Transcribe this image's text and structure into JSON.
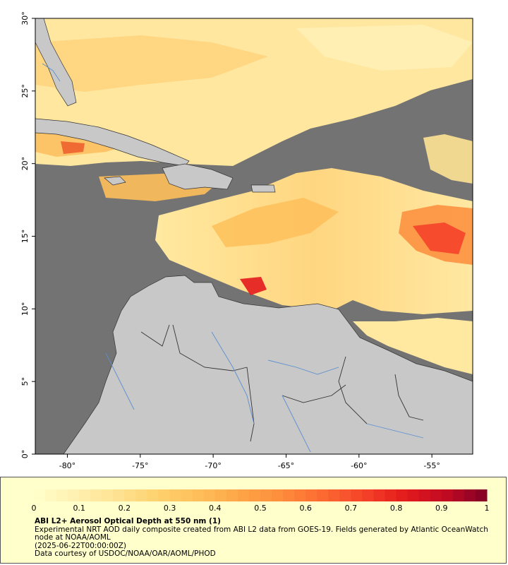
{
  "map": {
    "lon_ticks": [
      -80,
      -75,
      -70,
      -65,
      -60,
      -55
    ],
    "lat_ticks": [
      0,
      5,
      10,
      15,
      20,
      25,
      30
    ],
    "lon_tick_labels": [
      "-80°",
      "-75°",
      "-70°",
      "-65°",
      "-60°",
      "-55°"
    ],
    "lat_tick_labels": [
      "0°",
      "5°",
      "10°",
      "15°",
      "20°",
      "25°",
      "30°"
    ],
    "lon_range": [
      -82.2,
      -52.2
    ],
    "lat_range": [
      0,
      30
    ],
    "colors": {
      "no_data": "#737373",
      "land": "#c8c8c8",
      "borders": "#333333",
      "rivers": "#5a8fd0"
    }
  },
  "colorbar": {
    "tick_labels": [
      "0",
      "0.1",
      "0.2",
      "0.3",
      "0.4",
      "0.5",
      "0.6",
      "0.7",
      "0.8",
      "0.9",
      "1"
    ],
    "range": [
      0,
      1
    ],
    "colors": [
      "#ffffcc",
      "#fff0b0",
      "#ffe393",
      "#fed16e",
      "#febf5a",
      "#fea546",
      "#fd8d3c",
      "#fc6a31",
      "#f54329",
      "#e31a1c",
      "#c20a22",
      "#800026"
    ]
  },
  "legend": {
    "title": "ABI L2+ Aerosol Optical Depth at 550 nm (1)",
    "line1": "Experimental NRT AOD daily composite created from ABI L2 data from GOES-19. Fields generated by Atlantic OceanWatch node at NOAA/AOML",
    "line2": "(2025-06-22T00:00:00Z)",
    "line3": "Data courtesy of USDOC/NOAA/OAR/AOML/PHOD"
  }
}
